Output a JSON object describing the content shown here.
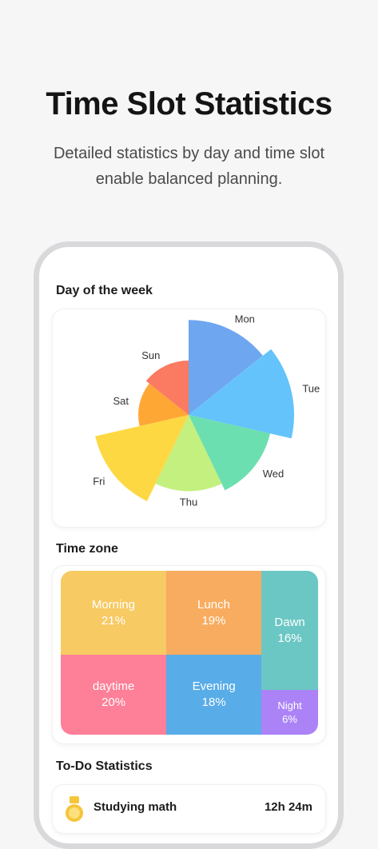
{
  "hero": {
    "title": "Time Slot Statistics",
    "subtitle_line1": "Detailed statistics by day and time slot",
    "subtitle_line2": "enable balanced planning."
  },
  "sections": {
    "day_of_week": "Day of the week",
    "time_zone": "Time zone",
    "todo_statistics": "To-Do Statistics"
  },
  "chart_data": [
    {
      "type": "pie",
      "title": "Day of the week",
      "categories": [
        "Mon",
        "Tue",
        "Wed",
        "Thu",
        "Fri",
        "Sat",
        "Sun"
      ],
      "values": [
        117,
        130,
        103,
        94,
        118,
        62,
        67
      ],
      "colors": [
        "#6ea6ef",
        "#64c3fb",
        "#6cdfb0",
        "#c3f07e",
        "#fdd843",
        "#ffa735",
        "#fa7a62"
      ]
    },
    {
      "type": "treemap",
      "title": "Time zone",
      "categories": [
        "Morning",
        "Lunch",
        "Dawn",
        "daytime",
        "Evening",
        "Night"
      ],
      "values": [
        21,
        19,
        16,
        20,
        18,
        6
      ],
      "labels": [
        "21%",
        "19%",
        "16%",
        "20%",
        "18%",
        "6%"
      ],
      "colors": [
        "#f7ca63",
        "#f8ac5f",
        "#6bc7c3",
        "#fd7f98",
        "#58ace8",
        "#ab83f7"
      ]
    }
  ],
  "todo": {
    "items": [
      {
        "name": "Studying math",
        "time": "12h 24m",
        "icon": "medal-icon",
        "color": "#f5c53b"
      }
    ]
  }
}
